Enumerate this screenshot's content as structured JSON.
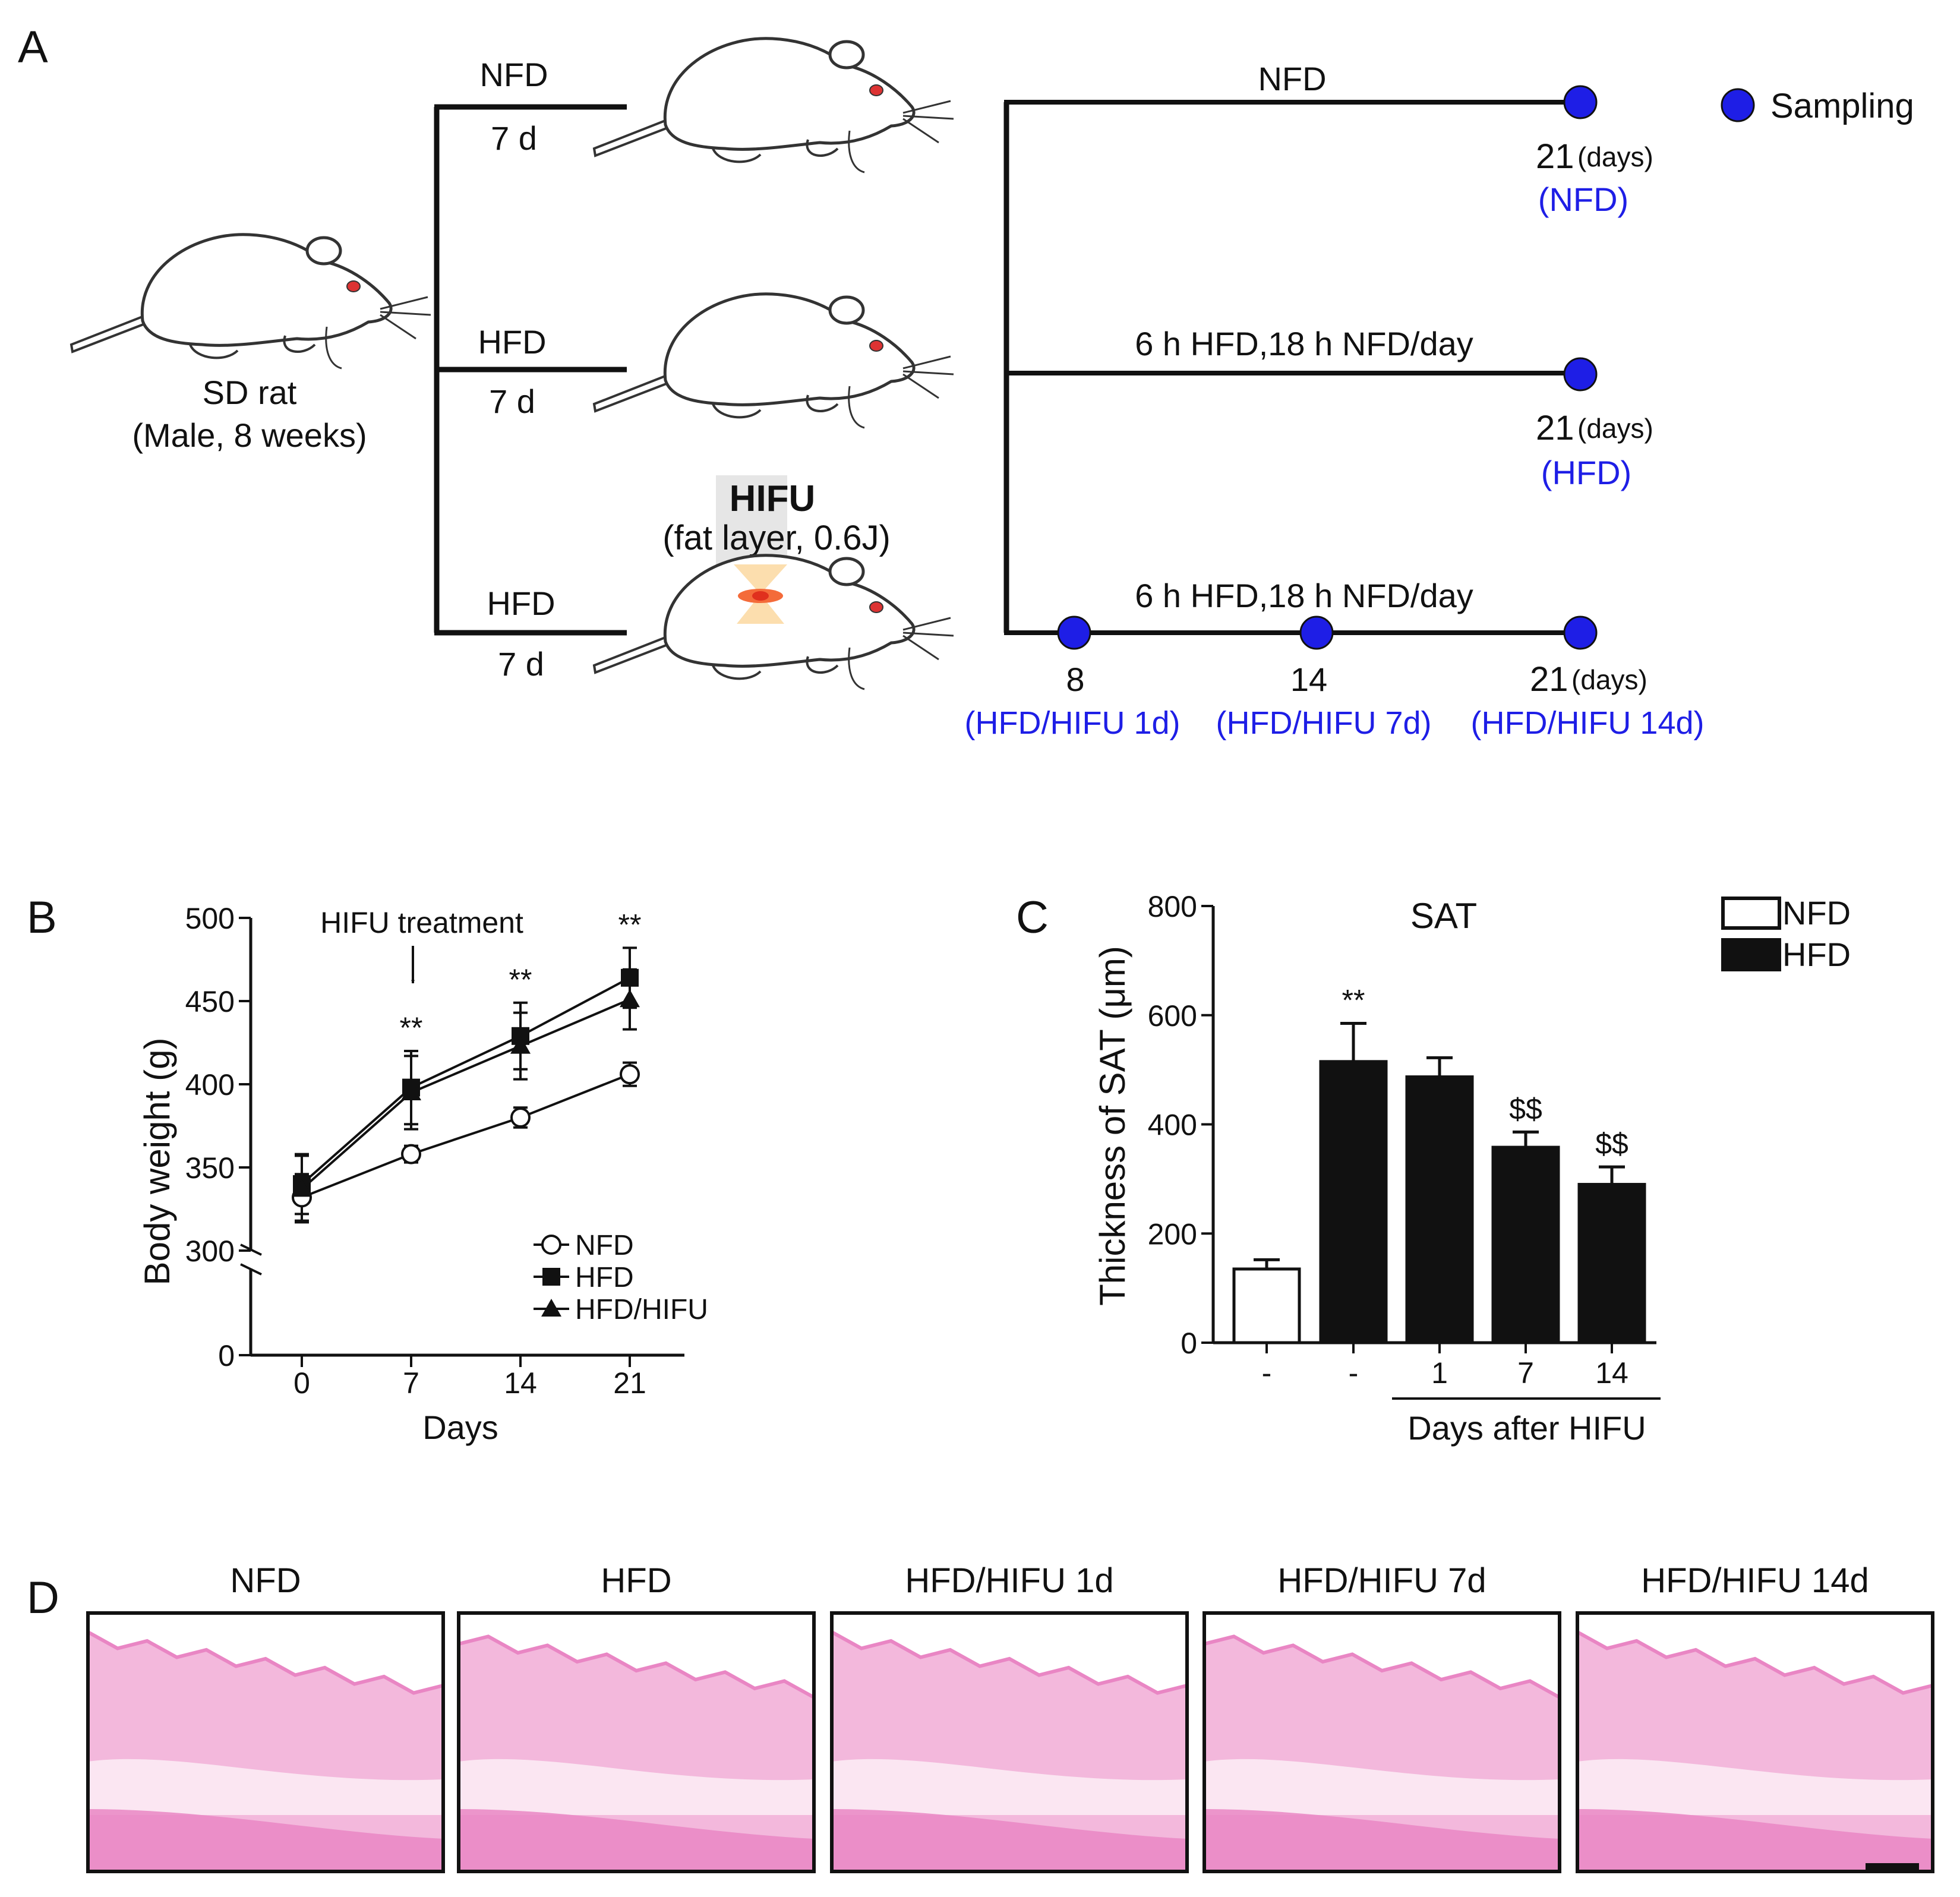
{
  "colors": {
    "blue": "#1e1ee6",
    "black": "#111111",
    "tissue": "#f3b8dc",
    "tissue_dark": "#e986c4"
  },
  "panelA": {
    "letter": "A",
    "rat_label": "SD rat",
    "rat_sub": "(Male, 8 weeks)",
    "arrow1_diet": "NFD",
    "arrow1_days": "7 d",
    "arrow2_diet": "HFD",
    "arrow2_days": "7 d",
    "arrow3_diet": "HFD",
    "arrow3_days": "7 d",
    "hifu_title": "HIFU",
    "hifu_sub": "(fat layer, 0.6J)",
    "line1_label": "NFD",
    "line2_label": "6 h HFD,18 h NFD/day",
    "line3_label": "6 h HFD,18 h NFD/day",
    "legend_sampling": "Sampling",
    "line1_day": "21",
    "line1_unit": "(days)",
    "line1_group": "(NFD)",
    "line2_day": "21",
    "line2_unit": "(days)",
    "line2_group": "(HFD)",
    "line3_day1": "8",
    "line3_day2": "14",
    "line3_day3": "21",
    "line3_unit": "(days)",
    "line3_group1": "(HFD/HIFU 1d)",
    "line3_group2": "(HFD/HIFU 7d)",
    "line3_group3": "(HFD/HIFU 14d)"
  },
  "chart_data": [
    {
      "type": "line",
      "panel": "B",
      "title": "",
      "xlabel": "Days",
      "ylabel": "Body weight (g)",
      "x": [
        0,
        7,
        14,
        21
      ],
      "xticks": [
        "0",
        "7",
        "14",
        "21"
      ],
      "yticks": [
        "0",
        "300",
        "350",
        "400",
        "450",
        "500"
      ],
      "ylim": [
        0,
        500
      ],
      "axis_break": [
        0,
        300
      ],
      "annotation": "HIFU treatment",
      "significance": [
        "",
        "**",
        "**",
        "**"
      ],
      "series": [
        {
          "name": "NFD",
          "marker": "open-circle",
          "values": [
            332,
            358,
            380,
            406
          ],
          "errors": [
            14,
            5,
            6,
            7
          ]
        },
        {
          "name": "HFD",
          "marker": "square",
          "values": [
            340,
            398,
            429,
            464
          ],
          "errors": [
            18,
            22,
            20,
            18
          ]
        },
        {
          "name": "HFD/HIFU",
          "marker": "triangle",
          "values": [
            337,
            395,
            423,
            451
          ],
          "errors": [
            20,
            22,
            20,
            18
          ]
        }
      ],
      "legend": [
        "NFD",
        "HFD",
        "HFD/HIFU"
      ]
    },
    {
      "type": "bar",
      "panel": "C",
      "title": "SAT",
      "ylabel": "Thickness of SAT (μm)",
      "xlabel": "Days after HIFU",
      "categories": [
        "-",
        "-",
        "1",
        "7",
        "14"
      ],
      "values": [
        135,
        515,
        487,
        358,
        290
      ],
      "errors": [
        17,
        70,
        35,
        28,
        32
      ],
      "groups": [
        "NFD",
        "HFD",
        "HFD",
        "HFD",
        "HFD"
      ],
      "annotations": [
        "",
        "**",
        "",
        "$$",
        "$$"
      ],
      "ylim": [
        0,
        800
      ],
      "yticks": [
        "0",
        "200",
        "400",
        "600",
        "800"
      ],
      "legend": [
        "NFD",
        "HFD"
      ]
    }
  ],
  "panelB": {
    "letter": "B"
  },
  "panelC": {
    "letter": "C"
  },
  "panelD": {
    "letter": "D",
    "images": [
      {
        "title": "NFD"
      },
      {
        "title": "HFD"
      },
      {
        "title": "HFD/HIFU 1d"
      },
      {
        "title": "HFD/HIFU 7d"
      },
      {
        "title": "HFD/HIFU 14d"
      }
    ]
  }
}
